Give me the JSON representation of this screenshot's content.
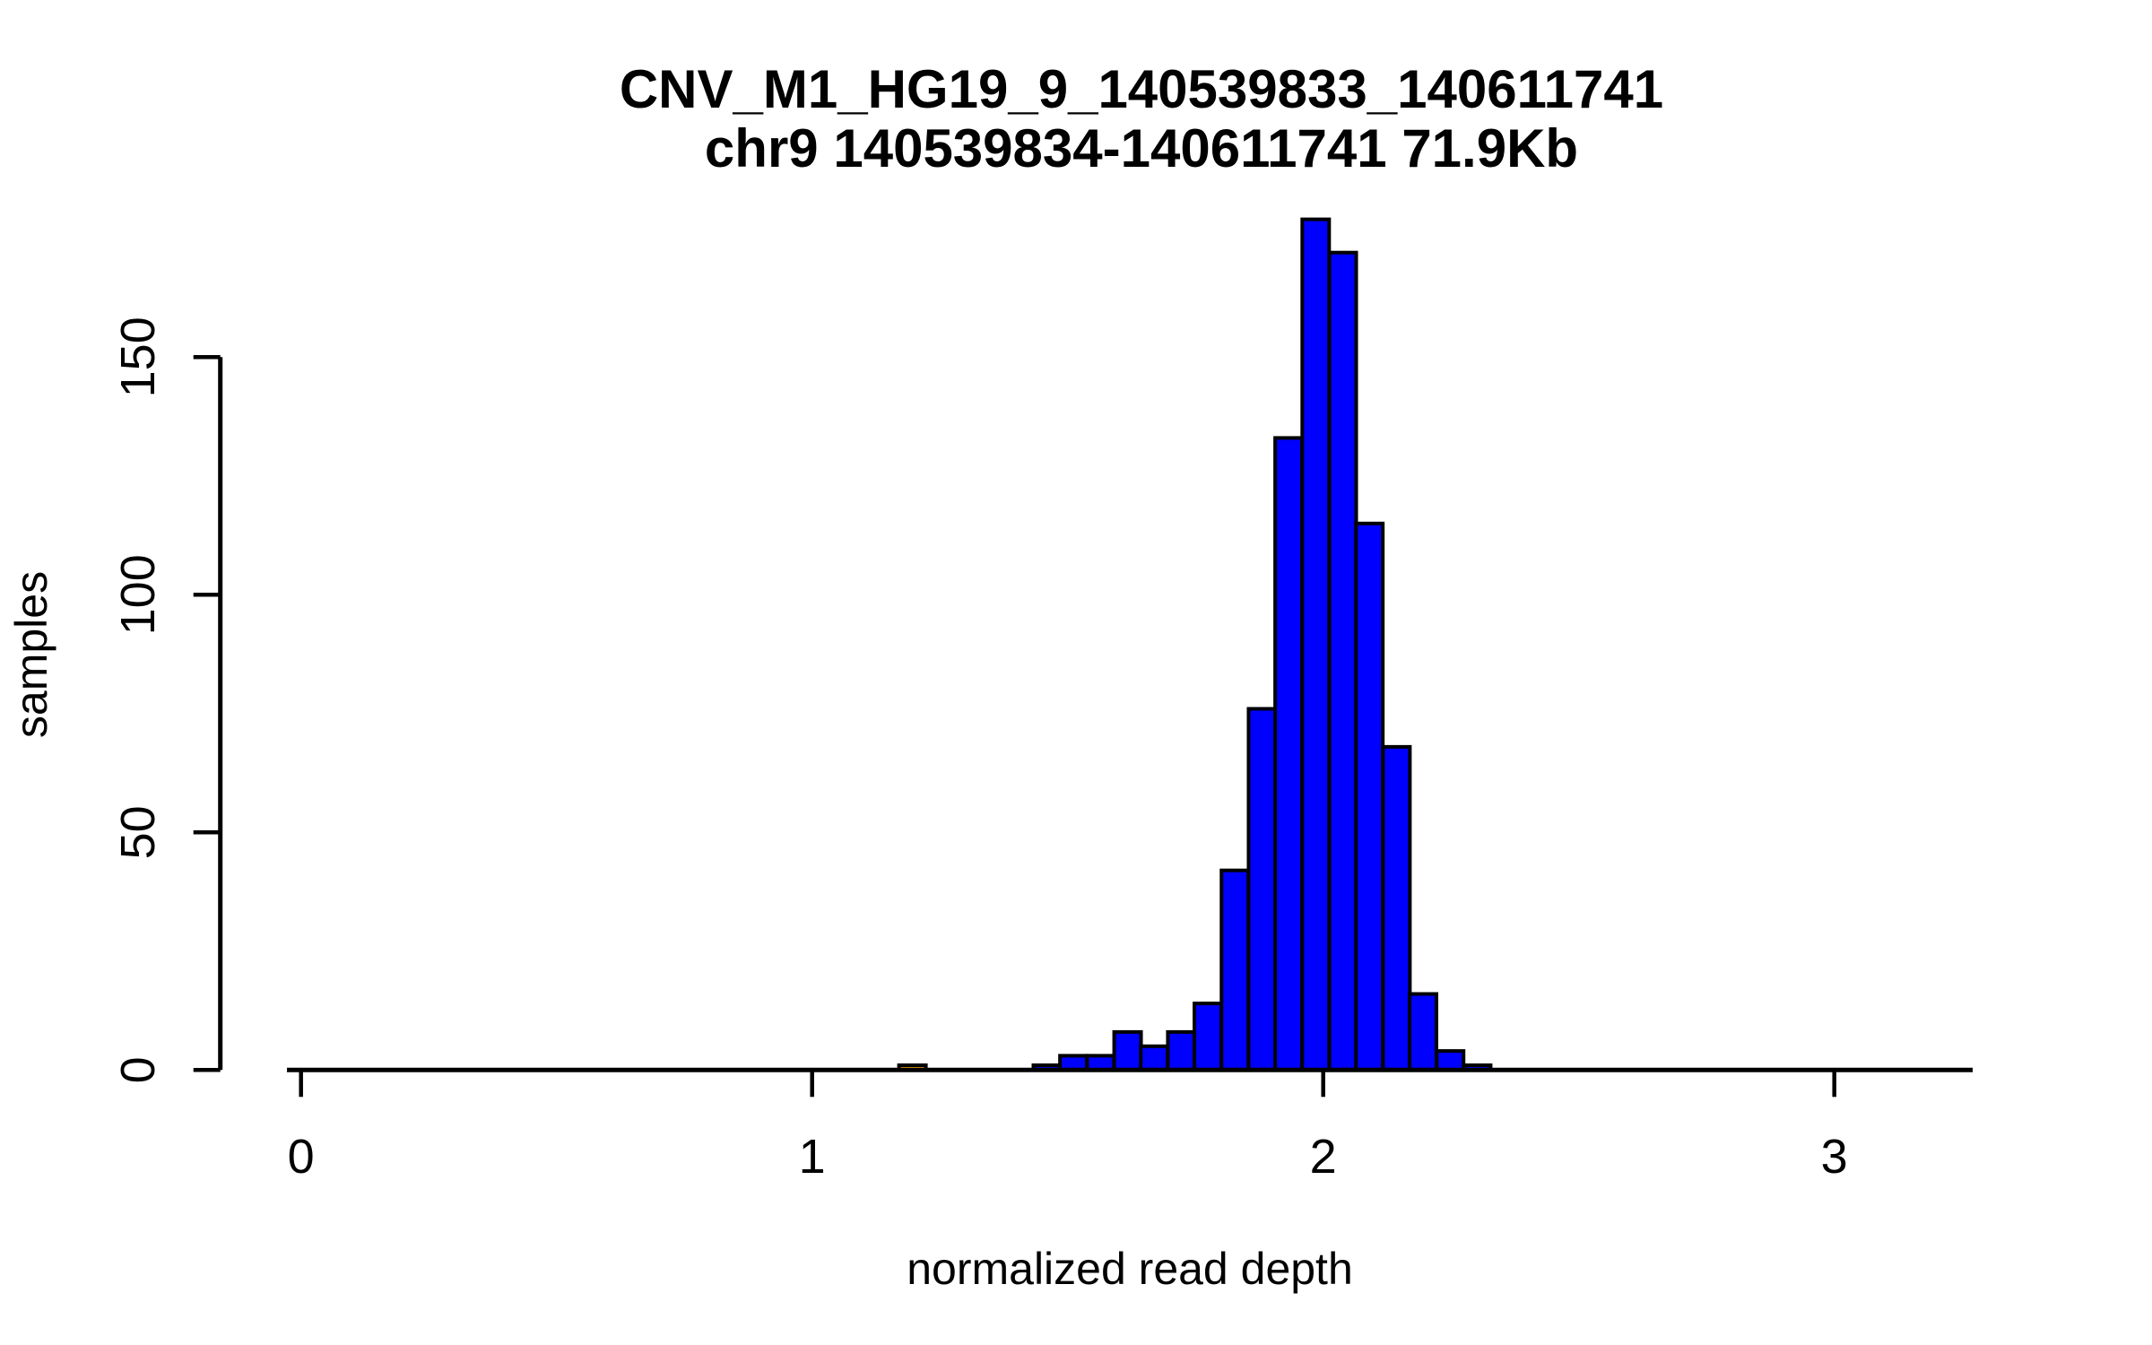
{
  "figure": {
    "title_line1": "CNV_M1_HG19_9_140539833_140611741",
    "title_line2": "chr9 140539834-140611741 71.9Kb",
    "xlabel": "normalized read depth",
    "ylabel": "samples"
  },
  "chart_data": {
    "type": "bar",
    "subtype": "histogram",
    "title": "CNV_M1_HG19_9_140539833_140611741",
    "subtitle": "chr9 140539834-140611741 71.9Kb",
    "xlabel": "normalized read depth",
    "ylabel": "samples",
    "x_ticks": [
      0,
      1,
      2,
      3
    ],
    "y_ticks": [
      0,
      50,
      100,
      150
    ],
    "xlim": [
      -0.03,
      3.27
    ],
    "ylim": [
      0,
      180
    ],
    "grid": false,
    "legend": "none",
    "bin_width": 0.0526,
    "bar_fill_color": "#0000FF",
    "outlier_fill_color": "#FFA500",
    "bar_border_color": "#000000",
    "bars": [
      {
        "x_left": 1.17,
        "count": 1,
        "color": "#FFA500"
      },
      {
        "x_left": 1.433,
        "count": 1,
        "color": "#0000FF"
      },
      {
        "x_left": 1.485,
        "count": 3,
        "color": "#0000FF"
      },
      {
        "x_left": 1.538,
        "count": 3,
        "color": "#0000FF"
      },
      {
        "x_left": 1.591,
        "count": 8,
        "color": "#0000FF"
      },
      {
        "x_left": 1.643,
        "count": 5,
        "color": "#0000FF"
      },
      {
        "x_left": 1.696,
        "count": 8,
        "color": "#0000FF"
      },
      {
        "x_left": 1.748,
        "count": 14,
        "color": "#0000FF"
      },
      {
        "x_left": 1.801,
        "count": 42,
        "color": "#0000FF"
      },
      {
        "x_left": 1.854,
        "count": 76,
        "color": "#0000FF"
      },
      {
        "x_left": 1.906,
        "count": 133,
        "color": "#0000FF"
      },
      {
        "x_left": 1.959,
        "count": 179,
        "color": "#0000FF"
      },
      {
        "x_left": 2.012,
        "count": 172,
        "color": "#0000FF"
      },
      {
        "x_left": 2.064,
        "count": 115,
        "color": "#0000FF"
      },
      {
        "x_left": 2.117,
        "count": 68,
        "color": "#0000FF"
      },
      {
        "x_left": 2.169,
        "count": 16,
        "color": "#0000FF"
      },
      {
        "x_left": 2.222,
        "count": 4,
        "color": "#0000FF"
      },
      {
        "x_left": 2.275,
        "count": 1,
        "color": "#0000FF"
      }
    ]
  }
}
